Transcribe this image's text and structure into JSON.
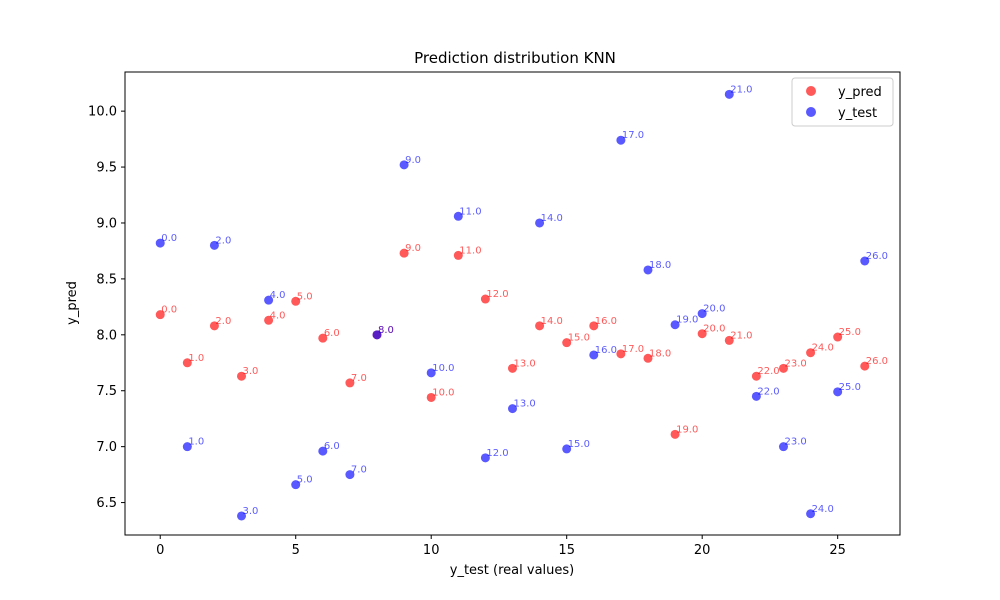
{
  "chart_data": {
    "type": "scatter",
    "title": "Prediction distribution KNN",
    "xlabel": "y_test (real values)",
    "ylabel": "y_pred",
    "xlim": [
      -1.3,
      27.3
    ],
    "ylim": [
      6.21,
      10.35
    ],
    "xticks": [
      0,
      5,
      10,
      15,
      20,
      25
    ],
    "yticks": [
      6.5,
      7.0,
      7.5,
      8.0,
      8.5,
      9.0,
      9.5,
      10.0
    ],
    "xtick_labels": [
      "0",
      "5",
      "10",
      "15",
      "20",
      "25"
    ],
    "ytick_labels": [
      "6.5",
      "7.0",
      "7.5",
      "8.0",
      "8.5",
      "9.0",
      "9.5",
      "10.0"
    ],
    "grid": false,
    "legend_position": "top-right",
    "series": [
      {
        "name": "y_pred",
        "color": "#ff0000",
        "alpha": 0.65,
        "x": [
          0,
          1,
          2,
          3,
          4,
          5,
          6,
          7,
          8,
          9,
          10,
          11,
          12,
          13,
          14,
          15,
          16,
          17,
          18,
          19,
          20,
          21,
          22,
          23,
          24,
          25,
          26
        ],
        "y": [
          8.18,
          7.75,
          8.08,
          7.63,
          8.13,
          8.3,
          7.97,
          7.57,
          8.0,
          8.73,
          7.44,
          8.71,
          8.32,
          7.7,
          8.08,
          7.93,
          8.08,
          7.83,
          7.79,
          7.11,
          8.01,
          7.95,
          7.63,
          7.7,
          7.84,
          7.98,
          7.72
        ],
        "labels": [
          "0.0",
          "1.0",
          "2.0",
          "3.0",
          "4.0",
          "5.0",
          "6.0",
          "7.0",
          "8.0",
          "9.0",
          "10.0",
          "11.0",
          "12.0",
          "13.0",
          "14.0",
          "15.0",
          "16.0",
          "17.0",
          "18.0",
          "19.0",
          "20.0",
          "21.0",
          "22.0",
          "23.0",
          "24.0",
          "25.0",
          "26.0"
        ]
      },
      {
        "name": "y_test",
        "color": "#0000ff",
        "alpha": 0.65,
        "x": [
          0,
          1,
          2,
          3,
          4,
          5,
          6,
          7,
          8,
          9,
          10,
          11,
          12,
          13,
          14,
          15,
          16,
          17,
          18,
          19,
          20,
          21,
          22,
          23,
          24,
          25,
          26
        ],
        "y": [
          8.82,
          7.0,
          8.8,
          6.38,
          8.31,
          6.66,
          6.96,
          6.75,
          8.0,
          9.52,
          7.66,
          9.06,
          6.9,
          7.34,
          9.0,
          6.98,
          7.82,
          9.74,
          8.58,
          8.09,
          8.19,
          10.15,
          7.45,
          7.0,
          6.4,
          7.49,
          8.66
        ],
        "labels": [
          "0.0",
          "1.0",
          "2.0",
          "3.0",
          "4.0",
          "5.0",
          "6.0",
          "7.0",
          "8.0",
          "9.0",
          "10.0",
          "11.0",
          "12.0",
          "13.0",
          "14.0",
          "15.0",
          "16.0",
          "17.0",
          "18.0",
          "19.0",
          "20.0",
          "21.0",
          "22.0",
          "23.0",
          "24.0",
          "25.0",
          "26.0"
        ]
      }
    ]
  }
}
